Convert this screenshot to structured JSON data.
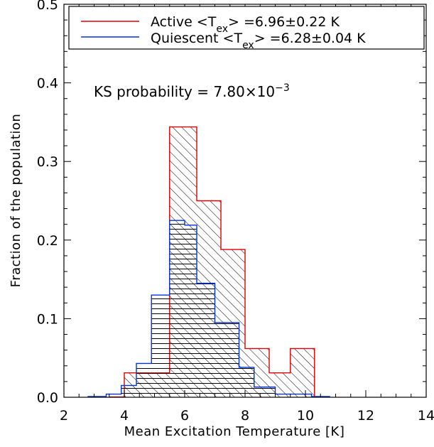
{
  "chart_data": {
    "type": "histogram",
    "xlabel": "Mean Excitation Temperature [K]",
    "ylabel": "Fraction of the population",
    "xlim": [
      2,
      14
    ],
    "ylim": [
      0,
      0.5
    ],
    "xticks": [
      "2",
      "4",
      "6",
      "8",
      "10",
      "12",
      "14"
    ],
    "yticks": [
      "0.0",
      "0.1",
      "0.2",
      "0.3",
      "0.4",
      "0.5"
    ],
    "annotation": {
      "prefix": "KS probability = 7.80×10",
      "exponent": "−3"
    },
    "legend": {
      "placement": "top",
      "entries": [
        {
          "name_main": "Active <T",
          "name_sub": "ex",
          "name_rest": "> =6.96±0.22 K",
          "color": "#e00000"
        },
        {
          "name_main": "Quiescent <T",
          "name_sub": "ex",
          "name_rest": "> =6.28±0.04 K",
          "color": "#0033dd"
        }
      ]
    },
    "series": [
      {
        "name": "Active",
        "color": "#e00000",
        "hatch": "diagonal",
        "bins": [
          [
            3.5,
            4.0,
            0.0
          ],
          [
            4.0,
            5.5,
            0.031
          ],
          [
            5.5,
            6.4,
            0.344
          ],
          [
            6.4,
            7.2,
            0.25
          ],
          [
            7.2,
            8.0,
            0.188
          ],
          [
            8.0,
            8.8,
            0.062
          ],
          [
            8.8,
            9.5,
            0.031
          ],
          [
            9.5,
            10.3,
            0.062
          ]
        ]
      },
      {
        "name": "Quiescent",
        "color": "#0033dd",
        "hatch": "horizontal",
        "bins": [
          [
            2.8,
            3.4,
            0.001
          ],
          [
            3.4,
            3.9,
            0.004
          ],
          [
            3.9,
            4.4,
            0.015
          ],
          [
            4.4,
            4.9,
            0.043
          ],
          [
            4.9,
            5.5,
            0.13
          ],
          [
            5.5,
            6.0,
            0.225
          ],
          [
            6.0,
            6.4,
            0.219
          ],
          [
            6.4,
            7.0,
            0.145
          ],
          [
            7.0,
            7.8,
            0.095
          ],
          [
            7.8,
            8.3,
            0.038
          ],
          [
            8.3,
            9.0,
            0.013
          ],
          [
            9.0,
            10.2,
            0.004
          ],
          [
            10.2,
            10.8,
            0.001
          ]
        ]
      }
    ]
  }
}
